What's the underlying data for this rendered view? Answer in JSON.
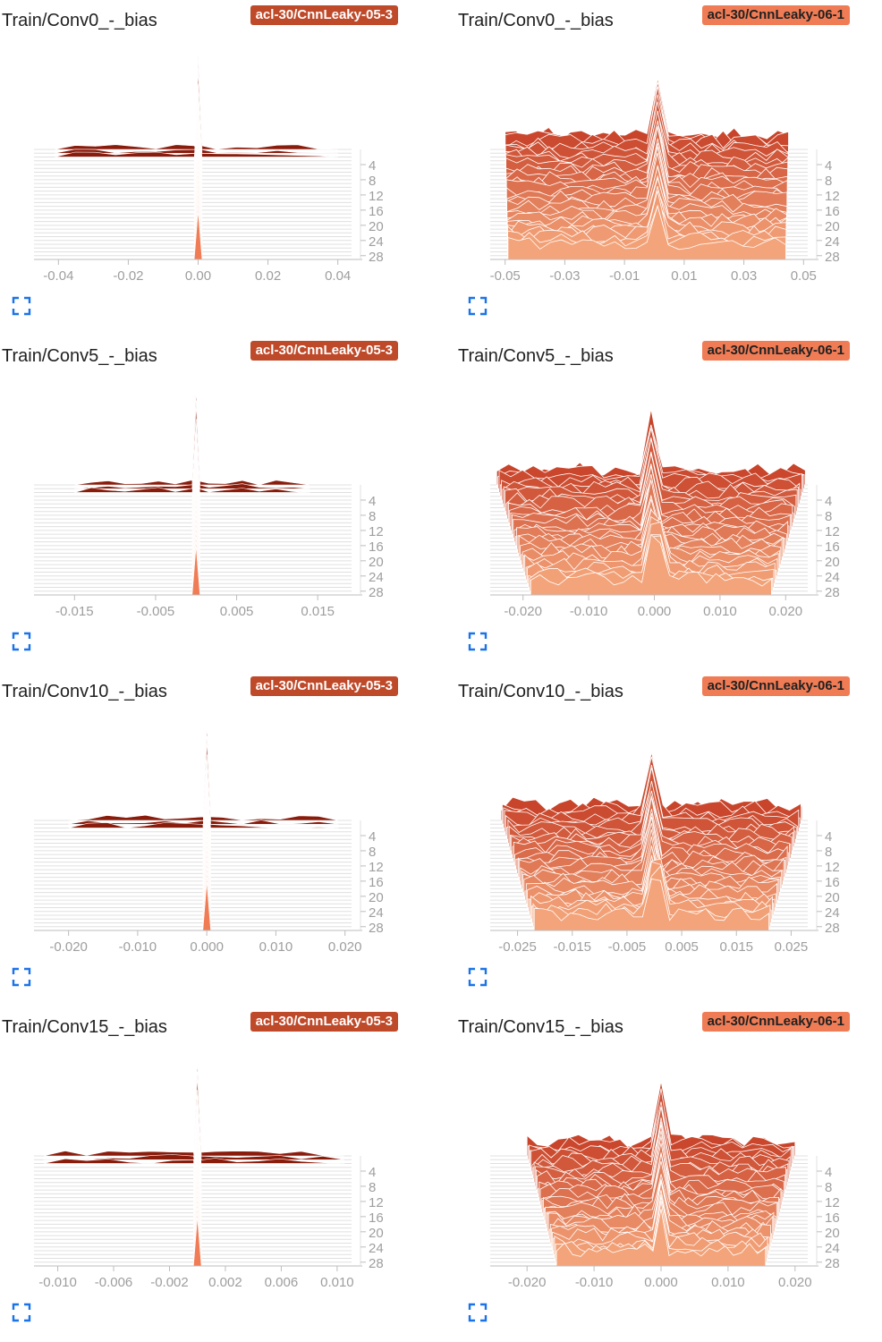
{
  "colors": {
    "run_05_3": "#bf4a2a",
    "run_06_1": "#f07c55",
    "run_05_3_ridge": "#8a1c0c",
    "run_06_1_top": "#c8442a",
    "run_06_1_bottom": "#f4a47a",
    "axis": "#9e9e9e",
    "expand_icon": "#1a73e8"
  },
  "cards": [
    {
      "title": "Train/Conv0_-_bias",
      "run": "acl-30/CnnLeaky-05-3",
      "expand_icon": "fullscreen-icon"
    },
    {
      "title": "Train/Conv0_-_bias",
      "run": "acl-30/CnnLeaky-06-1",
      "expand_icon": "fullscreen-icon"
    },
    {
      "title": "Train/Conv5_-_bias",
      "run": "acl-30/CnnLeaky-05-3",
      "expand_icon": "fullscreen-icon"
    },
    {
      "title": "Train/Conv5_-_bias",
      "run": "acl-30/CnnLeaky-06-1",
      "expand_icon": "fullscreen-icon"
    },
    {
      "title": "Train/Conv10_-_bias",
      "run": "acl-30/CnnLeaky-05-3",
      "expand_icon": "fullscreen-icon"
    },
    {
      "title": "Train/Conv10_-_bias",
      "run": "acl-30/CnnLeaky-06-1",
      "expand_icon": "fullscreen-icon"
    },
    {
      "title": "Train/Conv15_-_bias",
      "run": "acl-30/CnnLeaky-05-3",
      "expand_icon": "fullscreen-icon"
    },
    {
      "title": "Train/Conv15_-_bias",
      "run": "acl-30/CnnLeaky-06-1",
      "expand_icon": "fullscreen-icon"
    }
  ],
  "chart_data": [
    {
      "type": "histogram-ridgeline",
      "title": "Train/Conv0_-_bias",
      "run": "acl-30/CnnLeaky-05-3",
      "x_ticks": [
        "-0.04",
        "-0.02",
        "0.00",
        "0.02",
        "0.04"
      ],
      "x_tick_values": [
        -0.04,
        -0.02,
        0,
        0.02,
        0.04
      ],
      "xlim": [
        -0.047,
        0.047
      ],
      "y_ticks": [
        "4",
        "8",
        "12",
        "16",
        "20",
        "24",
        "28"
      ],
      "steps": [
        0,
        30
      ],
      "distribution": "narrow spike centered at 0.00, sparse values from -0.04 to 0.04 at early steps",
      "spread": [
        -0.041,
        0.04
      ],
      "peak_x": 0.0
    },
    {
      "type": "histogram-ridgeline",
      "title": "Train/Conv0_-_bias",
      "run": "acl-30/CnnLeaky-06-1",
      "x_ticks": [
        "-0.05",
        "-0.03",
        "-0.01",
        "0.01",
        "0.03",
        "0.05"
      ],
      "x_tick_values": [
        -0.05,
        -0.03,
        -0.01,
        0.01,
        0.03,
        0.05
      ],
      "xlim": [
        -0.055,
        0.055
      ],
      "y_ticks": [
        "4",
        "8",
        "12",
        "16",
        "20",
        "24",
        "28"
      ],
      "steps": [
        0,
        30
      ],
      "distribution": "wide roughly uniform spread from -0.05 to 0.045 with peak near 0.00",
      "spread": [
        -0.05,
        0.045
      ],
      "peak_x": 0.0
    },
    {
      "type": "histogram-ridgeline",
      "title": "Train/Conv5_-_bias",
      "run": "acl-30/CnnLeaky-05-3",
      "x_ticks": [
        "-0.015",
        "-0.005",
        "0.005",
        "0.015"
      ],
      "x_tick_values": [
        -0.015,
        -0.005,
        0.005,
        0.015
      ],
      "xlim": [
        -0.02,
        0.0205
      ],
      "y_ticks": [
        "4",
        "8",
        "12",
        "16",
        "20",
        "24",
        "28"
      ],
      "steps": [
        0,
        30
      ],
      "distribution": "narrow spike centered at 0.000, sparse values from -0.015 to 0.014 at early steps",
      "spread": [
        -0.015,
        0.014
      ],
      "peak_x": 0.0
    },
    {
      "type": "histogram-ridgeline",
      "title": "Train/Conv5_-_bias",
      "run": "acl-30/CnnLeaky-06-1",
      "x_ticks": [
        "-0.020",
        "-0.010",
        "0.000",
        "0.010",
        "0.020"
      ],
      "x_tick_values": [
        -0.02,
        -0.01,
        0,
        0.01,
        0.02
      ],
      "xlim": [
        -0.025,
        0.025
      ],
      "y_ticks": [
        "4",
        "8",
        "12",
        "16",
        "20",
        "24",
        "28"
      ],
      "steps": [
        0,
        30
      ],
      "distribution": "wide spread from -0.024 to 0.023 narrowing over steps, peak at 0.000",
      "spread": [
        -0.024,
        0.023
      ],
      "peak_x": 0.0
    },
    {
      "type": "histogram-ridgeline",
      "title": "Train/Conv10_-_bias",
      "run": "acl-30/CnnLeaky-05-3",
      "x_ticks": [
        "-0.020",
        "-0.010",
        "0.000",
        "0.010",
        "0.020"
      ],
      "x_tick_values": [
        -0.02,
        -0.01,
        0,
        0.01,
        0.02
      ],
      "xlim": [
        -0.025,
        0.0225
      ],
      "y_ticks": [
        "4",
        "8",
        "12",
        "16",
        "20",
        "24",
        "28"
      ],
      "steps": [
        0,
        30
      ],
      "distribution": "narrow spike centered at 0.000, sparse values from -0.020 to 0.019 at early steps",
      "spread": [
        -0.02,
        0.019
      ],
      "peak_x": 0.0
    },
    {
      "type": "histogram-ridgeline",
      "title": "Train/Conv10_-_bias",
      "run": "acl-30/CnnLeaky-06-1",
      "x_ticks": [
        "-0.025",
        "-0.015",
        "-0.005",
        "0.005",
        "0.015",
        "0.025"
      ],
      "x_tick_values": [
        -0.025,
        -0.015,
        -0.005,
        0.005,
        0.015,
        0.025
      ],
      "xlim": [
        -0.03,
        0.03
      ],
      "y_ticks": [
        "4",
        "8",
        "12",
        "16",
        "20",
        "24",
        "28"
      ],
      "steps": [
        0,
        30
      ],
      "distribution": "wide spread from -0.028 to 0.027 narrowing over steps, peak at 0.000",
      "spread": [
        -0.028,
        0.027
      ],
      "peak_x": 0.0
    },
    {
      "type": "histogram-ridgeline",
      "title": "Train/Conv15_-_bias",
      "run": "acl-30/CnnLeaky-05-3",
      "x_ticks": [
        "-0.010",
        "-0.006",
        "-0.002",
        "0.002",
        "0.006",
        "0.010"
      ],
      "x_tick_values": [
        -0.01,
        -0.006,
        -0.002,
        0.002,
        0.006,
        0.01
      ],
      "xlim": [
        -0.0117,
        0.0118
      ],
      "y_ticks": [
        "4",
        "8",
        "12",
        "16",
        "20",
        "24",
        "28"
      ],
      "steps": [
        0,
        30
      ],
      "distribution": "narrow spike centered at 0.000, sparse values from -0.011 to 0.010 at early steps",
      "spread": [
        -0.011,
        0.0105
      ],
      "peak_x": 0.0
    },
    {
      "type": "histogram-ridgeline",
      "title": "Train/Conv15_-_bias",
      "run": "acl-30/CnnLeaky-06-1",
      "x_ticks": [
        "-0.020",
        "-0.010",
        "0.000",
        "0.010",
        "0.020"
      ],
      "x_tick_values": [
        -0.02,
        -0.01,
        0,
        0.01,
        0.02
      ],
      "xlim": [
        -0.0255,
        0.0235
      ],
      "y_ticks": [
        "4",
        "8",
        "12",
        "16",
        "20",
        "24",
        "28"
      ],
      "steps": [
        0,
        30
      ],
      "distribution": "wide spread from -0.020 to 0.020 narrowing over steps, peak at 0.000",
      "spread": [
        -0.02,
        0.02
      ],
      "peak_x": 0.0
    }
  ]
}
